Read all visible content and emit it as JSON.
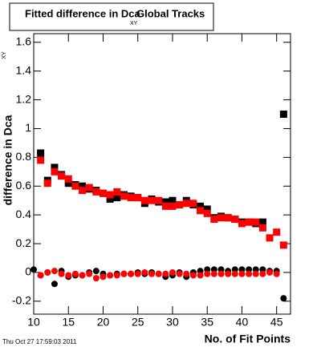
{
  "chart_data": {
    "type": "scatter",
    "title": "Fitted difference in Dca",
    "title_subscript": "XY",
    "title_suffix": "Global Tracks",
    "x_label": "No. of Fit Points",
    "y_label": "difference in Dca",
    "y_label_subscript": "XY",
    "timestamp": "Thu Oct 27 17:59:03 2011",
    "x": [
      10,
      11,
      12,
      13,
      14,
      15,
      16,
      17,
      18,
      19,
      20,
      21,
      22,
      23,
      24,
      25,
      26,
      27,
      28,
      29,
      30,
      31,
      32,
      33,
      34,
      35,
      36,
      37,
      38,
      39,
      40,
      41,
      42,
      43,
      44,
      45,
      46
    ],
    "series": [
      {
        "color": "#000000",
        "marker": "square",
        "values": [
          null,
          0.83,
          0.64,
          0.73,
          0.68,
          0.62,
          0.61,
          0.6,
          0.58,
          0.57,
          0.55,
          0.51,
          0.52,
          0.54,
          0.53,
          0.52,
          0.48,
          0.51,
          0.49,
          0.49,
          0.5,
          0.47,
          0.5,
          0.47,
          0.46,
          0.44,
          0.38,
          0.39,
          0.38,
          0.37,
          0.35,
          0.35,
          0.34,
          0.35,
          null,
          null,
          1.1
        ]
      },
      {
        "color": "#ff0000",
        "marker": "square",
        "values": [
          null,
          0.78,
          0.62,
          0.7,
          0.67,
          0.65,
          0.6,
          0.57,
          0.59,
          0.56,
          0.55,
          0.54,
          0.56,
          0.53,
          0.52,
          0.52,
          0.5,
          0.5,
          0.5,
          0.46,
          0.46,
          0.47,
          0.48,
          0.48,
          0.43,
          0.41,
          0.37,
          0.38,
          0.38,
          0.37,
          0.34,
          0.35,
          0.35,
          0.31,
          0.24,
          0.28,
          0.19
        ]
      },
      {
        "color": "#000000",
        "marker": "circle",
        "values": [
          0.02,
          -0.02,
          0.0,
          -0.08,
          0.01,
          -0.03,
          -0.02,
          -0.02,
          0.0,
          0.01,
          -0.01,
          -0.02,
          -0.01,
          -0.01,
          -0.01,
          0.0,
          -0.01,
          0.0,
          -0.01,
          -0.03,
          -0.02,
          0.0,
          -0.03,
          0.0,
          0.01,
          0.02,
          0.02,
          0.02,
          0.01,
          0.02,
          0.02,
          0.02,
          0.02,
          0.02,
          0.01,
          0.01,
          -0.18
        ]
      },
      {
        "color": "#ff0000",
        "marker": "circle",
        "values": [
          null,
          -0.02,
          0.0,
          0.01,
          -0.01,
          -0.02,
          -0.01,
          -0.02,
          -0.01,
          -0.04,
          -0.03,
          -0.02,
          -0.02,
          -0.01,
          -0.01,
          -0.01,
          0.0,
          -0.01,
          -0.01,
          -0.01,
          0.0,
          -0.01,
          -0.01,
          -0.02,
          -0.02,
          -0.01,
          -0.01,
          -0.01,
          -0.01,
          -0.01,
          -0.01,
          -0.01,
          -0.01,
          -0.01,
          0.0,
          -0.01,
          null
        ]
      }
    ],
    "xlim": [
      10,
      47
    ],
    "xticks": [
      10,
      15,
      20,
      25,
      30,
      35,
      40,
      45
    ],
    "ylim": [
      -0.29,
      1.66
    ],
    "yticks": [
      -0.2,
      0,
      0.2,
      0.4,
      0.6,
      0.8,
      1,
      1.2,
      1.4,
      1.6
    ]
  }
}
